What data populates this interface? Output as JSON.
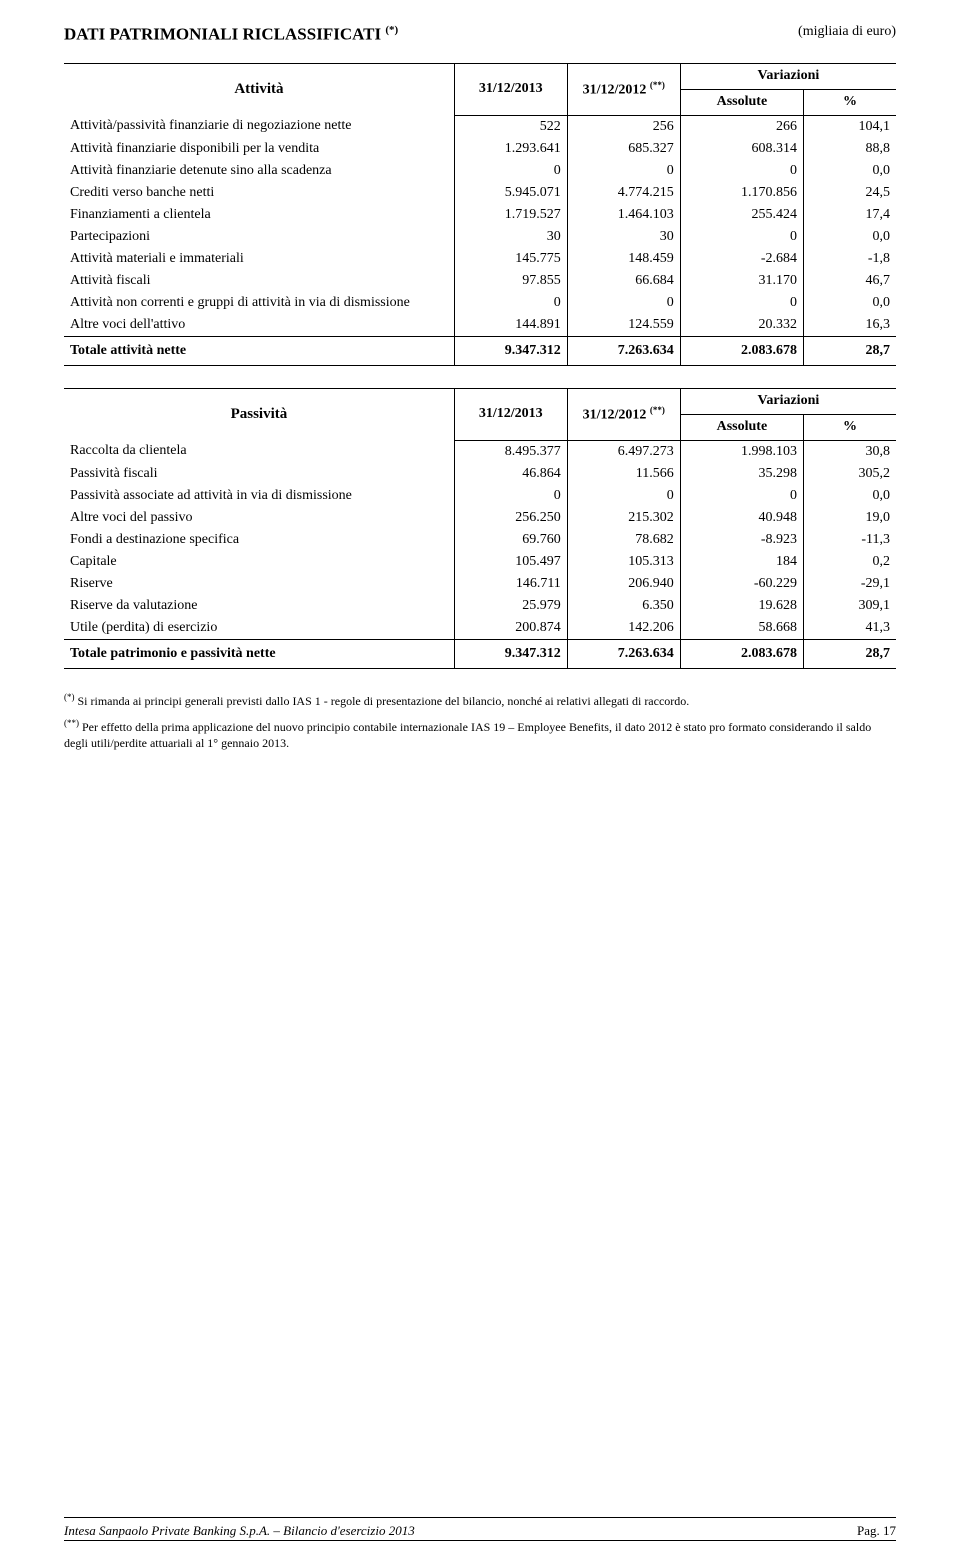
{
  "header": {
    "title": "DATI PATRIMONIALI RICLASSIFICATI",
    "title_sup": "(*)",
    "right_note": "(migliaia di euro)"
  },
  "table1": {
    "head_label": "Attività",
    "col1": "31/12/2013",
    "col2": "31/12/2012",
    "col2_sup": "(**)",
    "var_head": "Variazioni",
    "abs_head": "Assolute",
    "pct_head": "%",
    "rows": [
      {
        "label": "Attività/passività finanziarie di negoziazione nette",
        "a": "522",
        "b": "256",
        "abs": "266",
        "pct": "104,1"
      },
      {
        "label": "Attività finanziarie disponibili per la vendita",
        "a": "1.293.641",
        "b": "685.327",
        "abs": "608.314",
        "pct": "88,8"
      },
      {
        "label": "Attività finanziarie detenute sino alla scadenza",
        "a": "0",
        "b": "0",
        "abs": "0",
        "pct": "0,0"
      },
      {
        "label": "Crediti verso banche netti",
        "a": "5.945.071",
        "b": "4.774.215",
        "abs": "1.170.856",
        "pct": "24,5"
      },
      {
        "label": "Finanziamenti a clientela",
        "a": "1.719.527",
        "b": "1.464.103",
        "abs": "255.424",
        "pct": "17,4"
      },
      {
        "label": "Partecipazioni",
        "a": "30",
        "b": "30",
        "abs": "0",
        "pct": "0,0"
      },
      {
        "label": "Attività materiali e immateriali",
        "a": "145.775",
        "b": "148.459",
        "abs": "-2.684",
        "pct": "-1,8"
      },
      {
        "label": "Attività fiscali",
        "a": "97.855",
        "b": "66.684",
        "abs": "31.170",
        "pct": "46,7"
      },
      {
        "label": "Attività non correnti e gruppi di attività in via di dismissione",
        "a": "0",
        "b": "0",
        "abs": "0",
        "pct": "0,0"
      },
      {
        "label": "Altre voci dell'attivo",
        "a": "144.891",
        "b": "124.559",
        "abs": "20.332",
        "pct": "16,3"
      }
    ],
    "total": {
      "label": "Totale attività nette",
      "a": "9.347.312",
      "b": "7.263.634",
      "abs": "2.083.678",
      "pct": "28,7"
    }
  },
  "table2": {
    "head_label": "Passività",
    "col1": "31/12/2013",
    "col2": "31/12/2012",
    "col2_sup": "(**)",
    "var_head": "Variazioni",
    "abs_head": "Assolute",
    "pct_head": "%",
    "rows": [
      {
        "label": "Raccolta da clientela",
        "a": "8.495.377",
        "b": "6.497.273",
        "abs": "1.998.103",
        "pct": "30,8"
      },
      {
        "label": "Passività fiscali",
        "a": "46.864",
        "b": "11.566",
        "abs": "35.298",
        "pct": "305,2"
      },
      {
        "label": "Passività associate ad attività in via di dismissione",
        "a": "0",
        "b": "0",
        "abs": "0",
        "pct": "0,0"
      },
      {
        "label": "Altre voci del passivo",
        "a": "256.250",
        "b": "215.302",
        "abs": "40.948",
        "pct": "19,0"
      },
      {
        "label": "Fondi a destinazione specifica",
        "a": "69.760",
        "b": "78.682",
        "abs": "-8.923",
        "pct": "-11,3"
      },
      {
        "label": "Capitale",
        "a": "105.497",
        "b": "105.313",
        "abs": "184",
        "pct": "0,2"
      },
      {
        "label": "Riserve",
        "a": "146.711",
        "b": "206.940",
        "abs": "-60.229",
        "pct": "-29,1"
      },
      {
        "label": "Riserve da valutazione",
        "a": "25.979",
        "b": "6.350",
        "abs": "19.628",
        "pct": "309,1"
      },
      {
        "label": "Utile (perdita) di esercizio",
        "a": "200.874",
        "b": "142.206",
        "abs": "58.668",
        "pct": "41,3"
      }
    ],
    "total": {
      "label": "Totale patrimonio e passività nette",
      "a": "9.347.312",
      "b": "7.263.634",
      "abs": "2.083.678",
      "pct": "28,7"
    }
  },
  "footnotes": {
    "f1_sup": "(*)",
    "f1": "Si rimanda ai principi generali previsti dallo IAS 1 - regole di presentazione del bilancio, nonché ai relativi allegati di raccordo.",
    "f2_sup": "(**)",
    "f2": "Per effetto della prima applicazione del nuovo principio contabile internazionale IAS 19 – Employee Benefits, il dato 2012 è stato pro formato considerando il saldo degli utili/perdite attuariali al 1° gennaio 2013."
  },
  "footer": {
    "left": "Intesa Sanpaolo Private Banking S.p.A. – Bilancio d'esercizio 2013",
    "right": "Pag. 17"
  }
}
